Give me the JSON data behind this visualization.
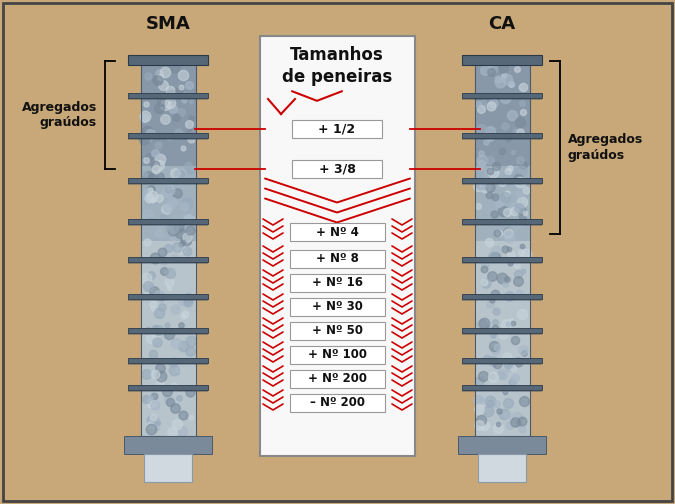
{
  "background_color": "#c8a878",
  "border_color": "#444444",
  "sma_label": "SMA",
  "ca_label": "CA",
  "center_title_line1": "Tamanhos",
  "center_title_line2": "de peneiras",
  "sieve_labels_top": [
    "+ 1/2",
    "+ 3/8"
  ],
  "sieve_labels_bottom": [
    "+ Nº 4",
    "+ Nº 8",
    "+ Nº 16",
    "+ Nº 30",
    "+ Nº 50",
    "+ Nº 100",
    "+ Nº 200",
    "– Nº 200"
  ],
  "left_annotation": "Agregados\ngraúdos",
  "right_annotation": "Agregados\ngraúdos",
  "chevron_color": "#cc0000",
  "panel_bg": "#f8f8f8",
  "shelf_color": "#5a6a7a",
  "shelf_edge": "#3a4a5a",
  "col_top_color": "#8a9aaa",
  "col_mid_color": "#9aacb8",
  "col_bot_color": "#b8c4cc",
  "col_fine_color": "#c8d0d8",
  "base_color": "#889aaa",
  "cyl_color": "#d0d8e0"
}
